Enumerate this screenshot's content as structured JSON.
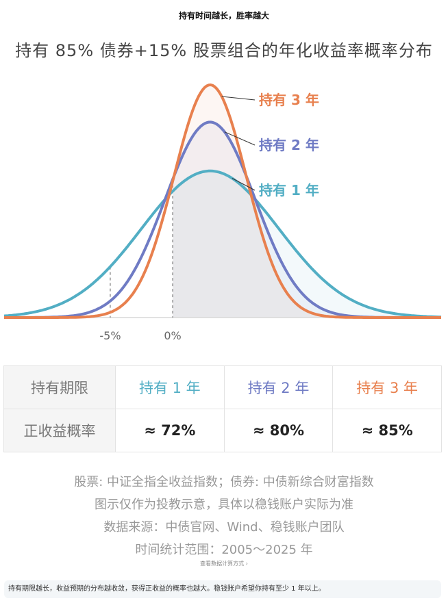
{
  "header": {
    "subtitle": "持有时间越长，胜率越大"
  },
  "title": "持有 85% 债券+15% 股票组合的年化收益率概率分布",
  "colors": {
    "year1": "#52aec4",
    "year2": "#6f7bc4",
    "year3": "#e8804e"
  },
  "chart_data": {
    "type": "area",
    "x_ticks": [
      "-5%",
      "0%"
    ],
    "series": [
      {
        "name": "持有 1 年",
        "mean": 0.03,
        "sd": 0.055,
        "peak_rel": 0.63,
        "positive_prob": 0.72
      },
      {
        "name": "持有 2 年",
        "mean": 0.03,
        "sd": 0.036,
        "peak_rel": 0.84,
        "positive_prob": 0.8
      },
      {
        "name": "持有 3 年",
        "mean": 0.03,
        "sd": 0.029,
        "peak_rel": 1.0,
        "positive_prob": 0.85
      }
    ],
    "xlim": [
      -0.135,
      0.215
    ],
    "reference_lines": [
      "-5%",
      "0%"
    ]
  },
  "table": {
    "row1_head": "持有期限",
    "row2_head": "正收益概率",
    "periods": [
      "持有 1 年",
      "持有 2 年",
      "持有 3 年"
    ],
    "probabilities": [
      "≈ 72%",
      "≈ 80%",
      "≈ 85%"
    ]
  },
  "notes": [
    "股票: 中证全指全收益指数；债券: 中债新综合财富指数",
    "图示仅作为投教示意，具体以稳钱账户实际为准",
    "数据来源：中债官网、Wind、稳钱账户团队",
    "时间统计范围：2005～2025 年"
  ],
  "calc_link": "查看数据计算方式 ›",
  "footer_note": "持有期限越长，收益预期的分布越收敛，获得正收益的概率也越大。稳钱账户希望你持有至少 1 年以上。"
}
